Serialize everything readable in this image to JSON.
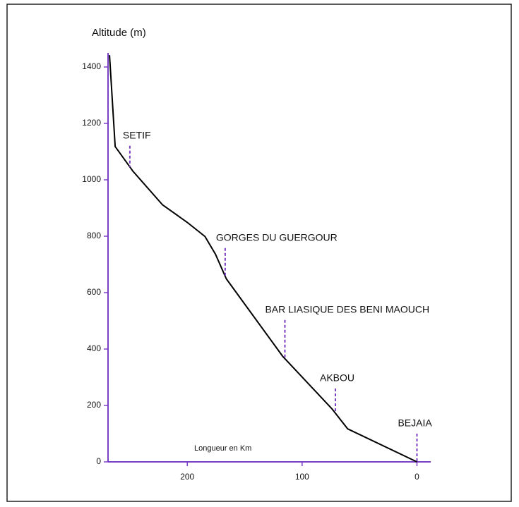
{
  "chart_data": {
    "type": "line",
    "y_label": "Altitude (m)",
    "x_label": "Longueur en Km",
    "x": [
      267.7,
      262.8,
      247.4,
      221.5,
      200,
      184.6,
      175.4,
      166,
      116.9,
      73.8,
      60.3,
      0
    ],
    "values": [
      1442,
      1118,
      1031,
      911,
      849,
      799,
      736,
      649,
      374,
      187,
      117,
      0
    ],
    "color": "#000000",
    "axis_color": "#7b3fc4",
    "xlim": [
      269,
      -12
    ],
    "ylim": [
      0,
      1450
    ],
    "xticks": [
      200,
      100,
      0
    ],
    "yticks": [
      0,
      200,
      400,
      600,
      800,
      1000,
      1200,
      1400
    ],
    "annotations": [
      {
        "text": "SETIF",
        "x": 250
      },
      {
        "text": "GORGES DU GUERGOUR",
        "x": 167
      },
      {
        "text": "BAR LIASIQUE DES BENI MAOUCH",
        "x": 115
      },
      {
        "text": "AKBOU",
        "x": 71
      },
      {
        "text": "BEJAIA",
        "x": 0
      }
    ]
  }
}
